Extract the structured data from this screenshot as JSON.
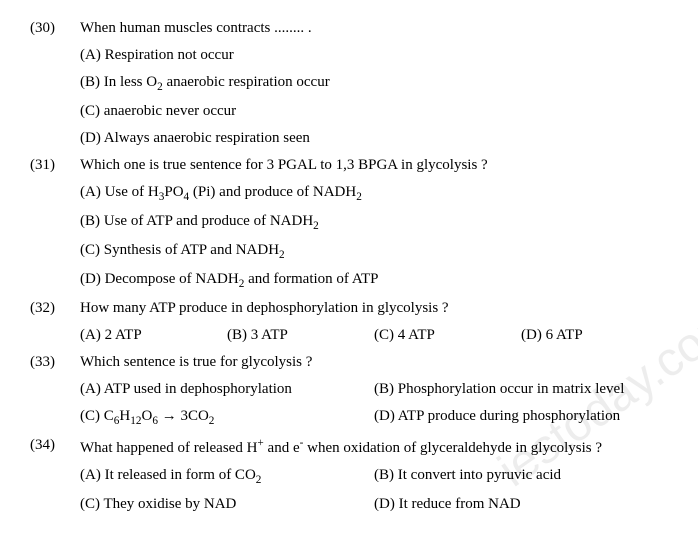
{
  "watermark": "iestoday.com",
  "questions": [
    {
      "num": "(30)",
      "stem": "When human muscles contracts ........ .",
      "layout": "vertical",
      "options": [
        "(A) Respiration not occur",
        "(B) In less O<sub>2</sub> anaerobic respiration occur",
        "(C) anaerobic never occur",
        "(D) Always anaerobic respiration seen"
      ]
    },
    {
      "num": "(31)",
      "stem": "Which one is true sentence for 3 PGAL to 1,3 BPGA in glycolysis ?",
      "layout": "vertical",
      "options": [
        "(A) Use of H<sub>3</sub>PO<sub>4</sub> (Pi) and produce of NADH<sub>2</sub>",
        "(B) Use of ATP and produce of NADH<sub>2</sub>",
        "(C) Synthesis of ATP and NADH<sub>2</sub>",
        "(D) Decompose of NADH<sub>2</sub> and formation of ATP"
      ]
    },
    {
      "num": "(32)",
      "stem": "How many ATP produce in dephosphorylation in glycolysis ?",
      "layout": "row4",
      "options": [
        "(A) 2 ATP",
        "(B) 3 ATP",
        "(C) 4 ATP",
        "(D) 6 ATP"
      ]
    },
    {
      "num": "(33)",
      "stem": "Which sentence is true for glycolysis ?",
      "layout": "row2x2",
      "options": [
        "(A) ATP used in dephosphorylation",
        "(B) Phosphorylation occur in matrix level",
        "(C) C<sub>6</sub>H<sub>12</sub>O<sub>6</sub> → 3CO<sub>2</sub>",
        "(D) ATP produce during phosphorylation"
      ]
    },
    {
      "num": "(34)",
      "stem": "What happened of released H<sup>+</sup> and e<sup>-</sup> when oxidation of glyceraldehyde in glycolysis ?",
      "layout": "row2x2",
      "options": [
        "(A) It released in form of CO<sub>2</sub>",
        "(B) It convert into pyruvic acid",
        "(C) They oxidise by NAD",
        "(D) It reduce from NAD"
      ]
    }
  ]
}
